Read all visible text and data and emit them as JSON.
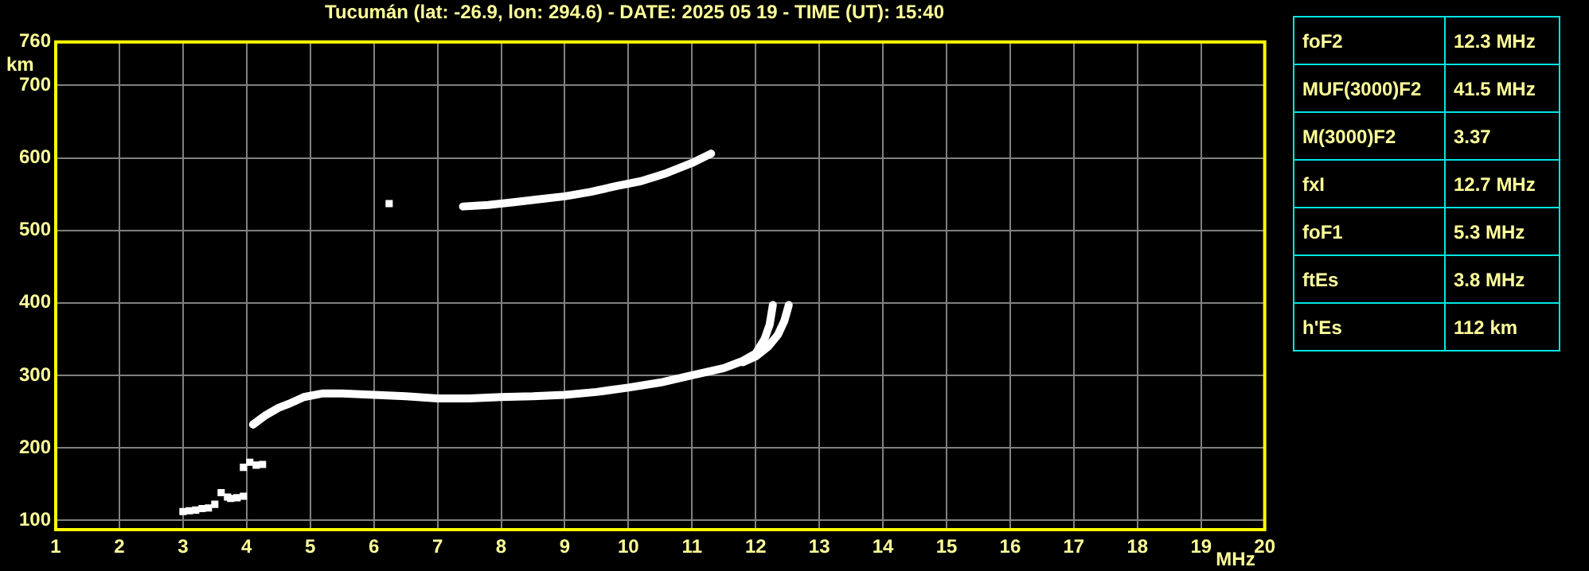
{
  "chart_data": [
    {
      "type": "scatter",
      "title": "Tucumán (lat: -26.9, lon: 294.6) - DATE: 2025 05 19 - TIME (UT): 15:40",
      "xlabel": "MHz",
      "ylabel": "km",
      "xlim": [
        1,
        20
      ],
      "xticks": [
        1,
        2,
        3,
        4,
        5,
        6,
        7,
        8,
        9,
        10,
        11,
        12,
        13,
        14,
        15,
        16,
        17,
        18,
        19,
        20
      ],
      "ylim": [
        87,
        760
      ],
      "yticks": [
        100,
        200,
        300,
        400,
        500,
        600,
        700,
        760
      ],
      "grid": true,
      "legend": false,
      "series": [
        {
          "type": "line",
          "marker": "none",
          "color": "#ffffff",
          "x": [
            4.1,
            4.3,
            4.5,
            4.7,
            4.9,
            5.2,
            5.5,
            6,
            6.5,
            7,
            7.5,
            8,
            8.5,
            9,
            9.5,
            10,
            10.5,
            11,
            11.5,
            11.8,
            12,
            12.14,
            12.22,
            12.27
          ],
          "values": [
            232,
            245,
            255,
            262,
            270,
            275,
            275,
            273,
            271,
            268,
            268,
            270,
            271,
            273,
            277,
            283,
            290,
            300,
            310,
            320,
            330,
            350,
            370,
            397
          ]
        },
        {
          "type": "line",
          "marker": "none",
          "color": "#ffffff",
          "x": [
            11.8,
            12.0,
            12.2,
            12.35,
            12.45,
            12.52
          ],
          "values": [
            318,
            326,
            340,
            356,
            375,
            397
          ]
        },
        {
          "type": "line",
          "marker": "none",
          "color": "#ffffff",
          "x": [
            7.4,
            7.8,
            8.2,
            8.6,
            9,
            9.4,
            9.8,
            10.2,
            10.6,
            11,
            11.3
          ],
          "values": [
            533,
            535,
            539,
            543,
            547,
            553,
            561,
            568,
            579,
            593,
            606
          ]
        },
        {
          "type": "scatter",
          "marker": "square",
          "color": "#ffffff",
          "x": [
            6.24,
            3.0,
            3.1,
            3.2,
            3.3,
            3.4,
            3.5,
            3.6,
            3.7,
            3.75,
            3.85,
            3.95,
            3.95,
            4.05,
            4.15,
            4.25
          ],
          "values": [
            537,
            112,
            113,
            114,
            116,
            117,
            122,
            138,
            132,
            130,
            131,
            133,
            173,
            180,
            176,
            177
          ]
        }
      ]
    },
    {
      "type": "other",
      "annotations": [
        "foF2",
        "12.3 MHz",
        "MUF(3000)F2",
        "41.5 MHz",
        "M(3000)F2",
        "3.37",
        "fxI",
        "12.7 MHz",
        "foF1",
        "5.3 MHz",
        "ftEs",
        "3.8 MHz",
        "h'Es",
        "112 km"
      ]
    }
  ]
}
